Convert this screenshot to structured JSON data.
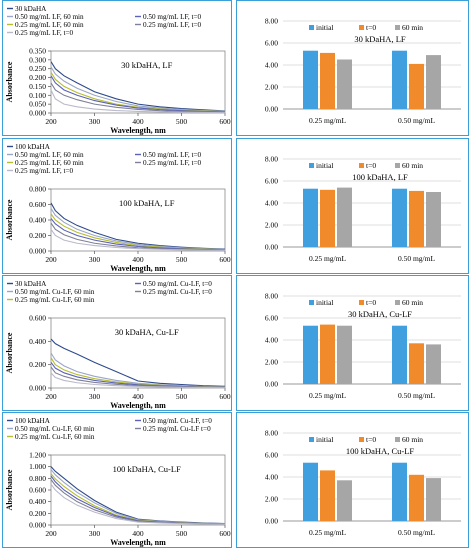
{
  "line_legend_colors": [
    "#2e4a8c",
    "#9aa6c8",
    "#b8bd2f",
    "#5a63b8",
    "#7f7f99",
    "#b9b9cc"
  ],
  "bar_colors": {
    "initial": "#3f9fdf",
    "t0": "#f08a2a",
    "m60": "#a6a6a6"
  },
  "chart_data": [
    {
      "type": "line",
      "annotation": "30 kDaHA, LF",
      "legend": [
        "30 kDaHA",
        "0.50 mg/mL LF, 60 min",
        "0.25 mg/mL LF, 60 min",
        "0.50 mg/mL LF, t=0",
        "0.25 mg/mL LF, t=0"
      ],
      "legend_lines": [
        [
          {
            "k": 0
          }
        ],
        [
          {
            "k": 1
          },
          {
            "k": 3
          }
        ],
        [
          {
            "k": 2
          },
          {
            "k": 4
          }
        ],
        [
          {
            "k": 5
          }
        ]
      ],
      "xlabel": "Wavelength, nm",
      "ylabel": "Absorbance",
      "xlim": [
        200,
        600
      ],
      "ylim": [
        0,
        0.35
      ],
      "xticks": [
        "200",
        "300",
        "400",
        "500",
        "600"
      ],
      "yticks": [
        "0.000",
        "0.050",
        "0.100",
        "0.150",
        "0.200",
        "0.250",
        "0.300",
        "0.350"
      ],
      "x": [
        200,
        210,
        230,
        260,
        300,
        350,
        400,
        450,
        500,
        550,
        600
      ],
      "series": [
        {
          "values": [
            0.29,
            0.25,
            0.21,
            0.17,
            0.12,
            0.08,
            0.05,
            0.035,
            0.025,
            0.018,
            0.012
          ]
        },
        {
          "values": [
            0.26,
            0.22,
            0.18,
            0.14,
            0.1,
            0.065,
            0.04,
            0.028,
            0.02,
            0.014,
            0.01
          ]
        },
        {
          "values": [
            0.23,
            0.19,
            0.15,
            0.115,
            0.08,
            0.05,
            0.032,
            0.022,
            0.016,
            0.011,
            0.008
          ]
        },
        {
          "values": [
            0.21,
            0.17,
            0.13,
            0.1,
            0.07,
            0.045,
            0.028,
            0.019,
            0.013,
            0.009,
            0.006
          ]
        },
        {
          "values": [
            0.17,
            0.13,
            0.1,
            0.075,
            0.05,
            0.032,
            0.02,
            0.013,
            0.009,
            0.006,
            0.004
          ]
        },
        {
          "values": [
            0.13,
            0.08,
            0.05,
            0.035,
            0.022,
            0.014,
            0.009,
            0.006,
            0.004,
            0.003,
            0.002
          ]
        }
      ]
    },
    {
      "type": "bar",
      "annotation": "30 kDaHA, LF",
      "legend": [
        "initial",
        "t=0",
        "60 min"
      ],
      "categories": [
        "0.25 mg/mL",
        "0.50 mg/mL"
      ],
      "ylim": [
        0,
        8
      ],
      "yticks": [
        "0.00",
        "2.00",
        "4.00",
        "6.00",
        "8.00"
      ],
      "series": [
        {
          "name": "initial",
          "values": [
            5.3,
            5.3
          ]
        },
        {
          "name": "t=0",
          "values": [
            5.1,
            4.1
          ]
        },
        {
          "name": "60 min",
          "values": [
            4.5,
            4.9
          ]
        }
      ]
    },
    {
      "type": "line",
      "annotation": "100 kDaHA, LF",
      "legend": [
        "100 kDaHA",
        "0.50 mg/mL LF, 60 min",
        "0.25 mg/mL LF, 60 min",
        "0.50 mg/mL LF, t=0",
        "0.25 mg/mL LF, t=0"
      ],
      "legend_lines": [
        [
          {
            "k": 0
          }
        ],
        [
          {
            "k": 1
          },
          {
            "k": 3
          }
        ],
        [
          {
            "k": 2
          },
          {
            "k": 4
          }
        ],
        [
          {
            "k": 5
          }
        ]
      ],
      "xlabel": "Wavelength, nm",
      "ylabel": "Absorbance",
      "xlim": [
        200,
        600
      ],
      "ylim": [
        0,
        0.8
      ],
      "xticks": [
        "200",
        "300",
        "400",
        "500",
        "600"
      ],
      "yticks": [
        "0.000",
        "0.200",
        "0.400",
        "0.600",
        "0.800"
      ],
      "x": [
        200,
        210,
        230,
        260,
        300,
        350,
        400,
        450,
        500,
        550,
        600
      ],
      "series": [
        {
          "values": [
            0.62,
            0.52,
            0.42,
            0.33,
            0.24,
            0.15,
            0.1,
            0.07,
            0.05,
            0.035,
            0.025
          ]
        },
        {
          "values": [
            0.55,
            0.46,
            0.37,
            0.28,
            0.2,
            0.13,
            0.085,
            0.06,
            0.042,
            0.03,
            0.02
          ]
        },
        {
          "values": [
            0.48,
            0.4,
            0.32,
            0.24,
            0.17,
            0.11,
            0.07,
            0.05,
            0.035,
            0.025,
            0.017
          ]
        },
        {
          "values": [
            0.42,
            0.35,
            0.27,
            0.2,
            0.14,
            0.09,
            0.058,
            0.04,
            0.028,
            0.02,
            0.014
          ]
        },
        {
          "values": [
            0.36,
            0.28,
            0.21,
            0.15,
            0.1,
            0.065,
            0.042,
            0.03,
            0.021,
            0.015,
            0.01
          ]
        },
        {
          "values": [
            0.28,
            0.2,
            0.14,
            0.1,
            0.07,
            0.045,
            0.03,
            0.021,
            0.015,
            0.011,
            0.008
          ]
        }
      ]
    },
    {
      "type": "bar",
      "annotation": "100 kDaHA, LF",
      "legend": [
        "initial",
        "t=0",
        "60 min"
      ],
      "categories": [
        "0.25 mg/mL",
        "0.50 mg/mL"
      ],
      "ylim": [
        0,
        8
      ],
      "yticks": [
        "0.00",
        "2.00",
        "4.00",
        "6.00",
        "8.00"
      ],
      "series": [
        {
          "name": "initial",
          "values": [
            5.3,
            5.3
          ]
        },
        {
          "name": "t=0",
          "values": [
            5.2,
            5.1
          ]
        },
        {
          "name": "60 min",
          "values": [
            5.4,
            5.0
          ]
        }
      ]
    },
    {
      "type": "line",
      "annotation": "30 kDaHA, Cu-LF",
      "legend": [
        "30 kDaHA",
        "0.50 mg/mL Cu-LF, 60 min",
        "0.25 mg/mL Cu-LF, 60 min",
        "0.50 mg/mL Cu-LF, t=0",
        "0.25 mg/mL Cu-LF, t=0"
      ],
      "legend_lines": [
        [
          {
            "k": 0
          },
          {
            "k": 3
          }
        ],
        [
          {
            "k": 1
          },
          {
            "k": 4
          }
        ],
        [
          {
            "k": 2
          }
        ]
      ],
      "xlabel": "Wavelength, nm",
      "ylabel": "Absorbance",
      "xlim": [
        200,
        600
      ],
      "ylim": [
        0,
        0.6
      ],
      "xticks": [
        "200",
        "300",
        "400",
        "500",
        "600"
      ],
      "yticks": [
        "0.000",
        "0.200",
        "0.400",
        "0.600"
      ],
      "x": [
        200,
        210,
        230,
        260,
        300,
        350,
        400,
        450,
        500,
        550,
        600
      ],
      "series": [
        {
          "values": [
            0.42,
            0.38,
            0.34,
            0.29,
            0.22,
            0.14,
            0.06,
            0.04,
            0.03,
            0.02,
            0.015
          ]
        },
        {
          "values": [
            0.3,
            0.24,
            0.19,
            0.14,
            0.1,
            0.065,
            0.04,
            0.028,
            0.02,
            0.014,
            0.01
          ]
        },
        {
          "values": [
            0.26,
            0.2,
            0.155,
            0.115,
            0.08,
            0.052,
            0.033,
            0.023,
            0.016,
            0.011,
            0.008
          ]
        },
        {
          "values": [
            0.22,
            0.17,
            0.13,
            0.095,
            0.065,
            0.042,
            0.027,
            0.019,
            0.013,
            0.009,
            0.006
          ]
        },
        {
          "values": [
            0.18,
            0.13,
            0.1,
            0.07,
            0.048,
            0.031,
            0.02,
            0.014,
            0.01,
            0.007,
            0.005
          ]
        },
        {
          "values": [
            0.13,
            0.09,
            0.065,
            0.045,
            0.03,
            0.02,
            0.013,
            0.009,
            0.006,
            0.004,
            0.003
          ]
        }
      ]
    },
    {
      "type": "bar",
      "annotation": "30 kDaHA, Cu-LF",
      "legend": [
        "initial",
        "t=0",
        "60 min"
      ],
      "categories": [
        "0.25 mg/mL",
        "0.50 mg/mL"
      ],
      "ylim": [
        0,
        8
      ],
      "yticks": [
        "0.00",
        "2.00",
        "4.00",
        "6.00",
        "8.00"
      ],
      "series": [
        {
          "name": "initial",
          "values": [
            5.3,
            5.3
          ]
        },
        {
          "name": "t=0",
          "values": [
            5.4,
            3.7
          ]
        },
        {
          "name": "60 min",
          "values": [
            5.3,
            3.6
          ]
        }
      ]
    },
    {
      "type": "line",
      "annotation": "100 kDaHA, Cu-LF",
      "legend": [
        "100 kDaHA",
        "0.50 mg/mL Cu-LF, 60 min",
        "0.25 mg/mL Cu-LF, 60 min",
        "0.50 mg/mL Cu-LF, t=0",
        "0.25 mg/mL Cu-LF t=0"
      ],
      "legend_lines": [
        [
          {
            "k": 0
          },
          {
            "k": 3
          }
        ],
        [
          {
            "k": 1
          },
          {
            "k": 4
          }
        ],
        [
          {
            "k": 2
          }
        ]
      ],
      "xlabel": "Wavelength, nm",
      "ylabel": "Absorbance",
      "xlim": [
        200,
        600
      ],
      "ylim": [
        0,
        1.2
      ],
      "xticks": [
        "200",
        "300",
        "400",
        "500",
        "600"
      ],
      "yticks": [
        "0.000",
        "0.200",
        "0.400",
        "0.600",
        "0.800",
        "1.000",
        "1.200"
      ],
      "x": [
        200,
        210,
        230,
        260,
        300,
        350,
        400,
        450,
        500,
        550,
        600
      ],
      "series": [
        {
          "values": [
            1.0,
            0.92,
            0.8,
            0.62,
            0.42,
            0.22,
            0.1,
            0.07,
            0.05,
            0.035,
            0.025
          ]
        },
        {
          "values": [
            0.95,
            0.86,
            0.73,
            0.56,
            0.38,
            0.2,
            0.09,
            0.063,
            0.045,
            0.032,
            0.022
          ]
        },
        {
          "values": [
            0.88,
            0.79,
            0.66,
            0.5,
            0.33,
            0.17,
            0.08,
            0.056,
            0.04,
            0.028,
            0.02
          ]
        },
        {
          "values": [
            0.84,
            0.74,
            0.6,
            0.45,
            0.3,
            0.155,
            0.072,
            0.05,
            0.036,
            0.025,
            0.018
          ]
        },
        {
          "values": [
            0.78,
            0.68,
            0.55,
            0.4,
            0.26,
            0.135,
            0.063,
            0.044,
            0.031,
            0.022,
            0.016
          ]
        },
        {
          "values": [
            0.7,
            0.6,
            0.47,
            0.34,
            0.22,
            0.11,
            0.05,
            0.035,
            0.025,
            0.018,
            0.013
          ]
        }
      ]
    },
    {
      "type": "bar",
      "annotation": "100 kDaHA, Cu-LF",
      "legend": [
        "initial",
        "t=0",
        "60 min"
      ],
      "categories": [
        "0.25 mg/mL",
        "0.50 mg/mL"
      ],
      "ylim": [
        0,
        8
      ],
      "yticks": [
        "0.00",
        "2.00",
        "4.00",
        "6.00",
        "8.00"
      ],
      "series": [
        {
          "name": "initial",
          "values": [
            5.3,
            5.3
          ]
        },
        {
          "name": "t=0",
          "values": [
            4.6,
            4.2
          ]
        },
        {
          "name": "60 min",
          "values": [
            3.7,
            3.9
          ]
        }
      ]
    }
  ]
}
